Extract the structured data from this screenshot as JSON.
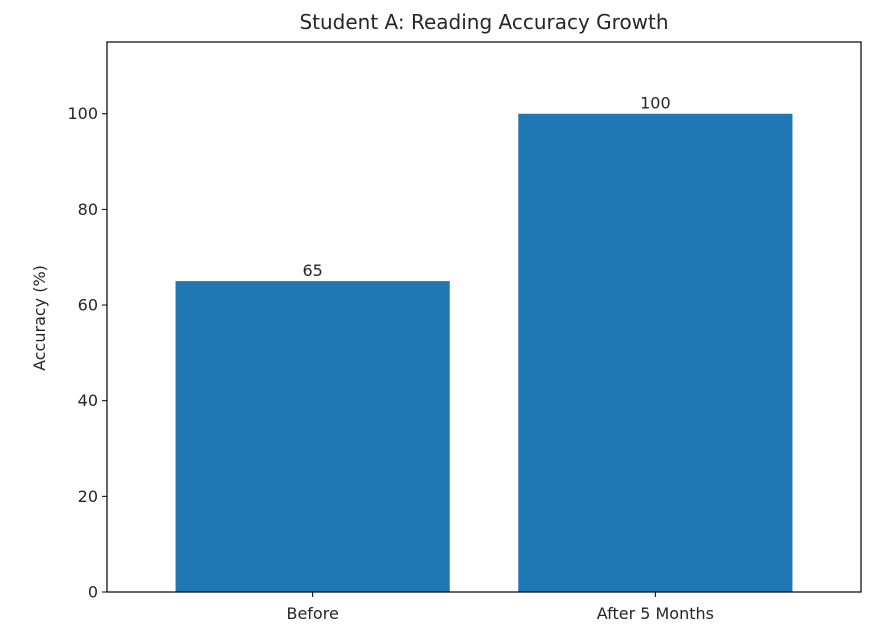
{
  "chart_data": {
    "type": "bar",
    "title": "Student A: Reading Accuracy Growth",
    "xlabel": "",
    "ylabel": "Accuracy (%)",
    "categories": [
      "Before",
      "After 5 Months"
    ],
    "values": [
      65,
      100
    ],
    "data_labels": [
      "65",
      "100"
    ],
    "ylim": [
      0,
      115
    ],
    "yticks": [
      0,
      20,
      40,
      60,
      80,
      100
    ],
    "grid": false,
    "bar_color": "#1f77b4"
  }
}
